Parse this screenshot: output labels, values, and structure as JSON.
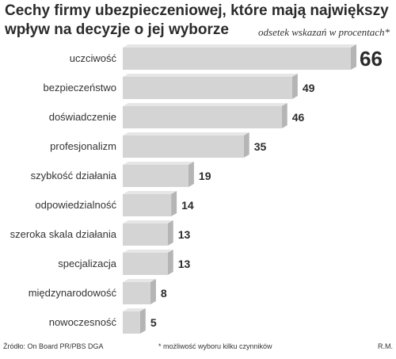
{
  "title_line1": "Cechy firmy ubezpieczeniowej, które mają największy",
  "title_line2": "wpływ na decyzje o jej wyborze",
  "subtitle": "odsetek wskazań w procentach*",
  "source": "Źródło: On Board PR/PBS DGA",
  "footnote": "* możliwość wyboru kilku czynników",
  "author": "R.M.",
  "colors": {
    "bar_front": "#d4d4d4",
    "bar_side": "#b5b5b5",
    "bar_top": "#e6e6e6",
    "background": "#ffffff"
  },
  "chart_data": {
    "type": "bar",
    "orientation": "horizontal",
    "title": "Cechy firmy ubezpieczeniowej, które mają największy wpływ na decyzje o jej wyborze",
    "subtitle": "odsetek wskazań w procentach*",
    "categories": [
      "uczciwość",
      "bezpieczeństwo",
      "doświadczenie",
      "profesjonalizm",
      "szybkość działania",
      "odpowiedzialność",
      "szeroka skala działania",
      "specjalizacja",
      "międzynarodowość",
      "nowoczesność"
    ],
    "values": [
      66,
      49,
      46,
      35,
      19,
      14,
      13,
      13,
      8,
      5
    ],
    "xlim": [
      0,
      66
    ],
    "grid": false,
    "legend": "none"
  }
}
